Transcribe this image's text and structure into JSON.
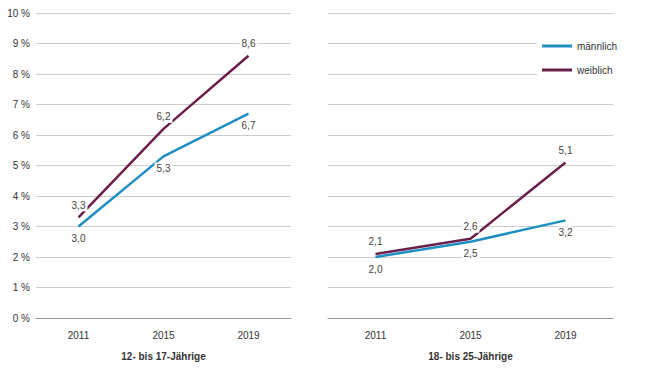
{
  "chart_data": [
    {
      "type": "line",
      "xlabel": "12- bis 17-Jährige",
      "categories": [
        "2011",
        "2015",
        "2019"
      ],
      "series": [
        {
          "name": "männlich",
          "color": "#1f8fc4",
          "values": [
            3.0,
            5.3,
            6.7
          ],
          "value_labels": [
            "3,0",
            "5,3",
            "6,7"
          ]
        },
        {
          "name": "weiblich",
          "color": "#6b1f4b",
          "values": [
            3.3,
            6.2,
            8.6
          ],
          "value_labels": [
            "3,3",
            "6,2",
            "8,6"
          ]
        }
      ],
      "ylim": [
        0,
        10
      ],
      "yticks": [
        {
          "value": 0,
          "label": "0 %"
        },
        {
          "value": 1,
          "label": "1 %"
        },
        {
          "value": 2,
          "label": "2 %"
        },
        {
          "value": 3,
          "label": "3 %"
        },
        {
          "value": 4,
          "label": "4 %"
        },
        {
          "value": 5,
          "label": "5 %"
        },
        {
          "value": 6,
          "label": "6 %"
        },
        {
          "value": 7,
          "label": "7 %"
        },
        {
          "value": 8,
          "label": "8 %"
        },
        {
          "value": 9,
          "label": "9 %"
        },
        {
          "value": 10,
          "label": "10 %"
        }
      ],
      "grid": true,
      "data_labels": true
    },
    {
      "type": "line",
      "xlabel": "18- bis 25-Jährige",
      "categories": [
        "2011",
        "2015",
        "2019"
      ],
      "series": [
        {
          "name": "männlich",
          "color": "#1f8fc4",
          "values": [
            2.0,
            2.5,
            3.2
          ],
          "value_labels": [
            "2,0",
            "2,5",
            "3,2"
          ]
        },
        {
          "name": "weiblich",
          "color": "#6b1f4b",
          "values": [
            2.1,
            2.6,
            5.1
          ],
          "value_labels": [
            "2,1",
            "2,6",
            "5,1"
          ]
        }
      ],
      "ylim": [
        0,
        10
      ],
      "yticks": [
        {
          "value": 0,
          "label": "0 %"
        },
        {
          "value": 1,
          "label": "1 %"
        },
        {
          "value": 2,
          "label": "2 %"
        },
        {
          "value": 3,
          "label": "3 %"
        },
        {
          "value": 4,
          "label": "4 %"
        },
        {
          "value": 5,
          "label": "5 %"
        },
        {
          "value": 6,
          "label": "6 %"
        },
        {
          "value": 7,
          "label": "7 %"
        },
        {
          "value": 8,
          "label": "8 %"
        },
        {
          "value": 9,
          "label": "9 %"
        },
        {
          "value": 10,
          "label": "10 %"
        }
      ],
      "grid": true,
      "data_labels": true,
      "tick_labels": "x",
      "legend": "top right"
    }
  ]
}
